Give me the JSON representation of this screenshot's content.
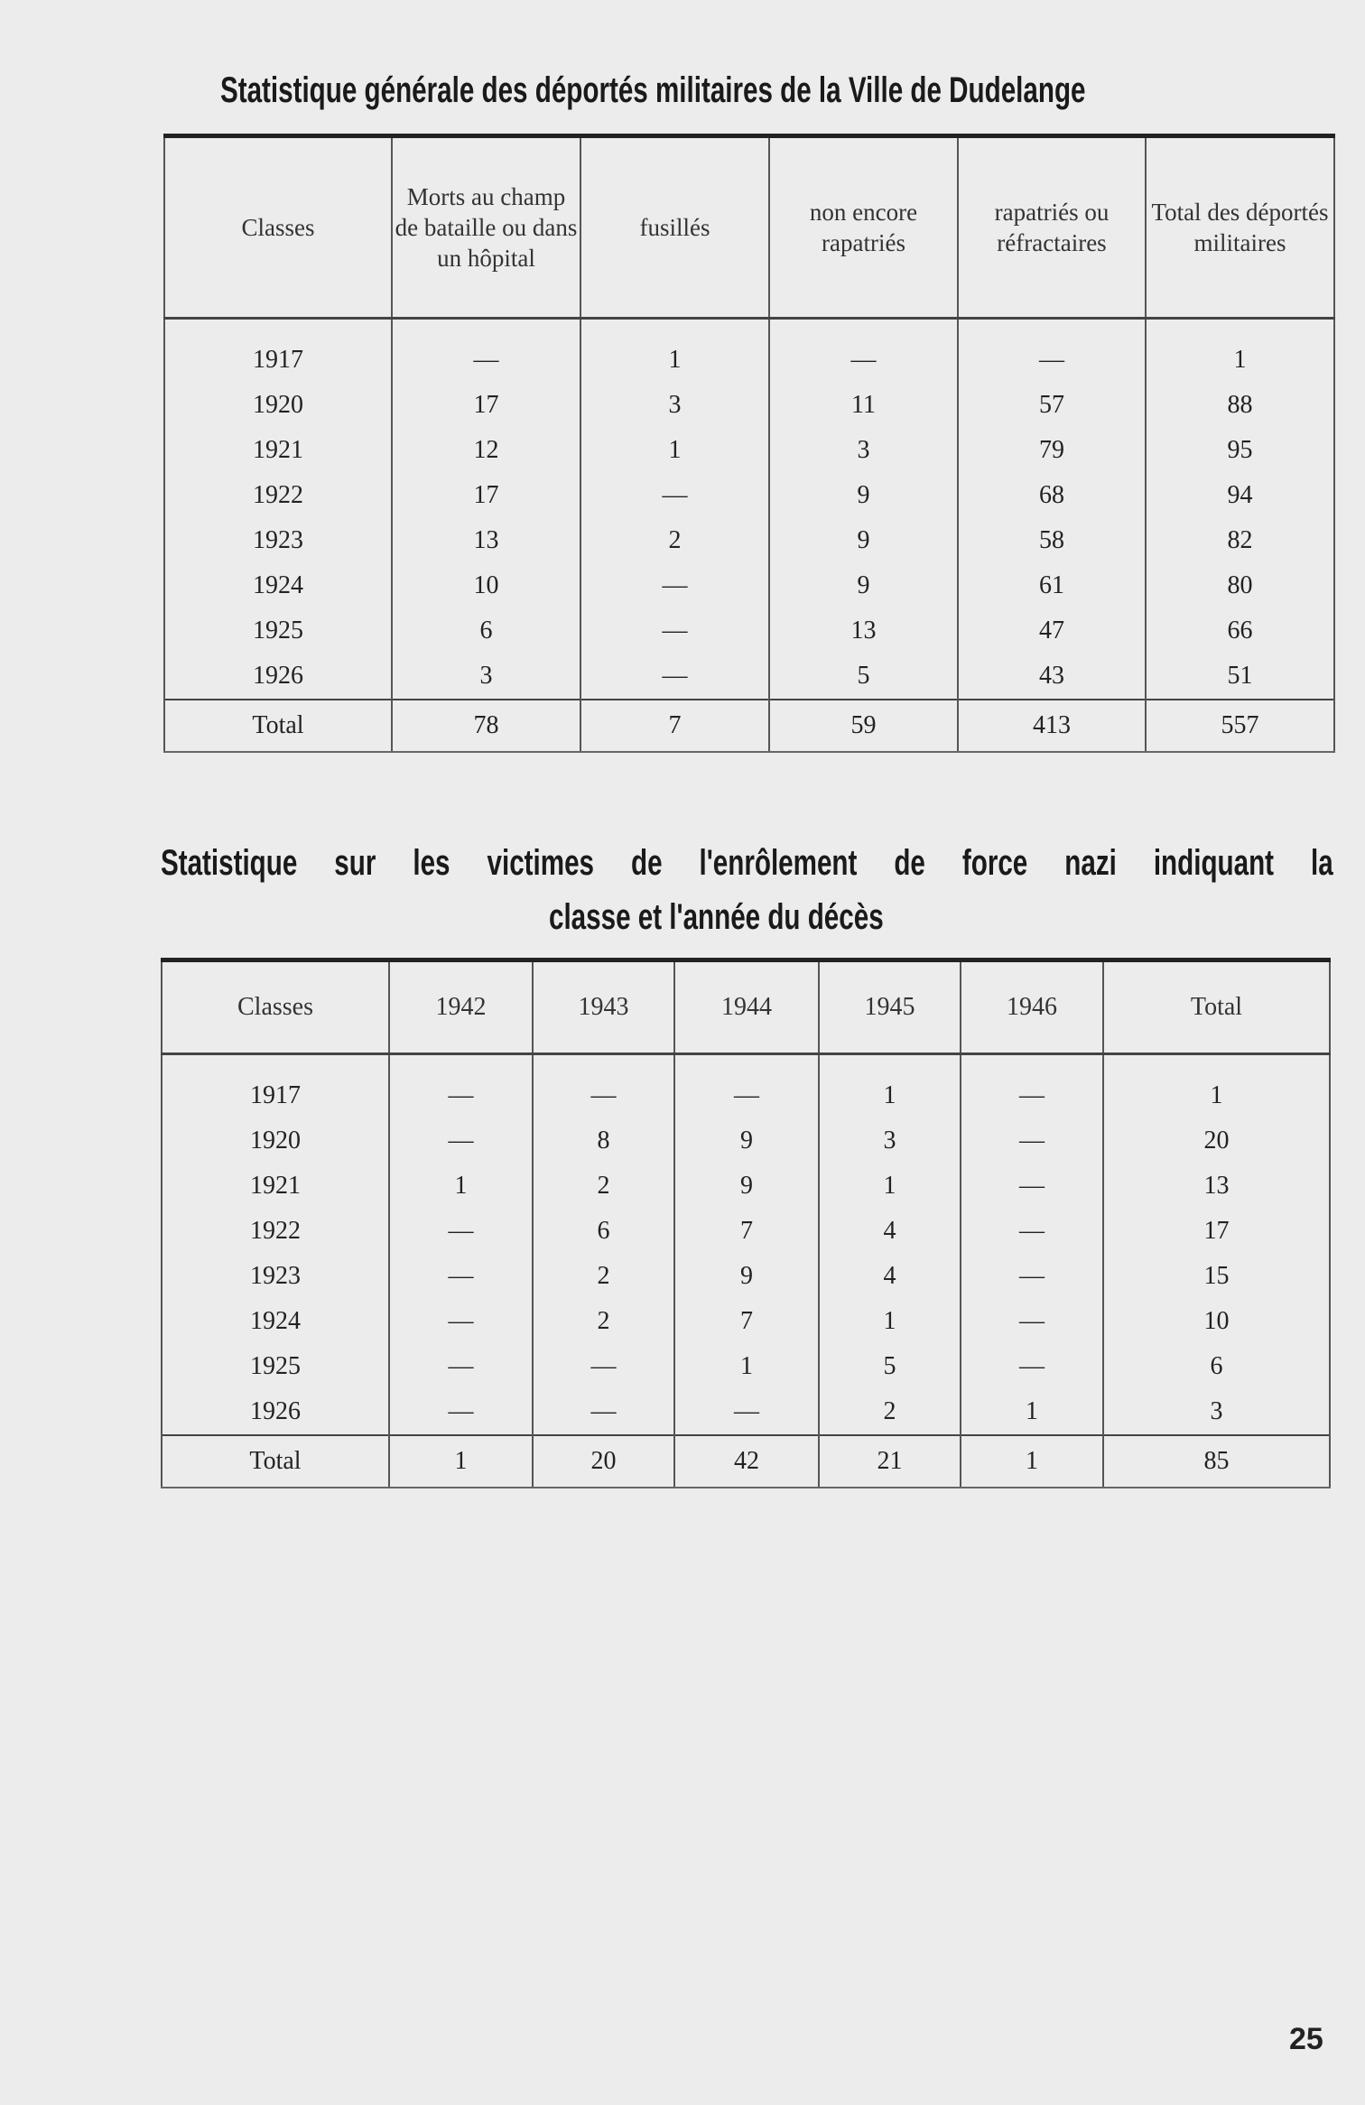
{
  "table1": {
    "title": "Statistique générale des déportés militaires de la Ville de Dudelange",
    "headers": [
      "Classes",
      "Morts au champ de bataille ou dans un hôpital",
      "fusillés",
      "non encore rapatriés",
      "rapatriés ou réfractaires",
      "Total des déportés militaires"
    ],
    "rows": [
      [
        "1917",
        "—",
        "1",
        "—",
        "—",
        "1"
      ],
      [
        "1920",
        "17",
        "3",
        "11",
        "57",
        "88"
      ],
      [
        "1921",
        "12",
        "1",
        "3",
        "79",
        "95"
      ],
      [
        "1922",
        "17",
        "—",
        "9",
        "68",
        "94"
      ],
      [
        "1923",
        "13",
        "2",
        "9",
        "58",
        "82"
      ],
      [
        "1924",
        "10",
        "—",
        "9",
        "61",
        "80"
      ],
      [
        "1925",
        "6",
        "—",
        "13",
        "47",
        "66"
      ],
      [
        "1926",
        "3",
        "—",
        "5",
        "43",
        "51"
      ]
    ],
    "total": [
      "Total",
      "78",
      "7",
      "59",
      "413",
      "557"
    ]
  },
  "table2": {
    "title_line1": "Statistique sur les victimes de l'enrôlement de force nazi indiquant la",
    "title_line2": "classe et l'année du décès",
    "headers": [
      "Classes",
      "1942",
      "1943",
      "1944",
      "1945",
      "1946",
      "Total"
    ],
    "rows": [
      [
        "1917",
        "—",
        "—",
        "—",
        "1",
        "—",
        "1"
      ],
      [
        "1920",
        "—",
        "8",
        "9",
        "3",
        "—",
        "20"
      ],
      [
        "1921",
        "1",
        "2",
        "9",
        "1",
        "—",
        "13"
      ],
      [
        "1922",
        "—",
        "6",
        "7",
        "4",
        "—",
        "17"
      ],
      [
        "1923",
        "—",
        "2",
        "9",
        "4",
        "—",
        "15"
      ],
      [
        "1924",
        "—",
        "2",
        "7",
        "1",
        "—",
        "10"
      ],
      [
        "1925",
        "—",
        "—",
        "1",
        "5",
        "—",
        "6"
      ],
      [
        "1926",
        "—",
        "—",
        "—",
        "2",
        "1",
        "3"
      ]
    ],
    "total": [
      "Total",
      "1",
      "20",
      "42",
      "21",
      "1",
      "85"
    ]
  },
  "page_number": "25"
}
